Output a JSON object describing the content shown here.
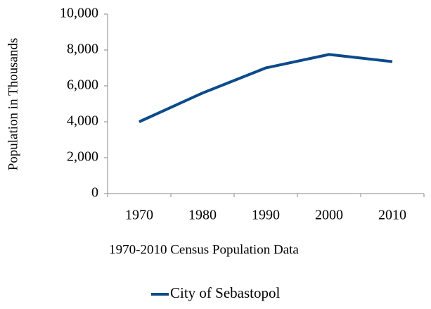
{
  "chart_data": {
    "type": "line",
    "x_label": "1970-2010 Census Population Data",
    "y_label": "Population in Thousands",
    "categories": [
      "1970",
      "1980",
      "1990",
      "2000",
      "2010"
    ],
    "series": [
      {
        "name": "City of Sebastopol",
        "color": "#0b4a8b",
        "values": [
          4000,
          5600,
          7000,
          7750,
          7350
        ]
      }
    ],
    "ylim": [
      0,
      10000
    ],
    "yticks": [
      0,
      {
        "value": 2000,
        "label": "2,000"
      },
      {
        "value": 4000,
        "label": "4,000"
      },
      {
        "value": 6000,
        "label": "6,000"
      },
      {
        "value": 8000,
        "label": "8,000"
      },
      {
        "value": 10000,
        "label": "10,000"
      }
    ],
    "grid": false,
    "legend": "bottom"
  }
}
